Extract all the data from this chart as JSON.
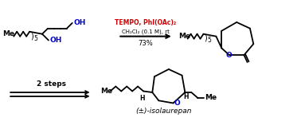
{
  "background_color": "#ffffff",
  "fig_width": 3.78,
  "fig_height": 1.67,
  "dpi": 100,
  "reagents_line1": "TEMPO, PhI(OAc)₂",
  "reagents_line2": "CH₂Cl₂ (0.1 M), rt",
  "yield_text": "73%",
  "steps_text": "2 steps",
  "product_label": "(±)-isolaurepan",
  "colors": {
    "black": "#000000",
    "red": "#cc0000",
    "blue": "#0000cc",
    "oh_blue": "#0000cc"
  }
}
